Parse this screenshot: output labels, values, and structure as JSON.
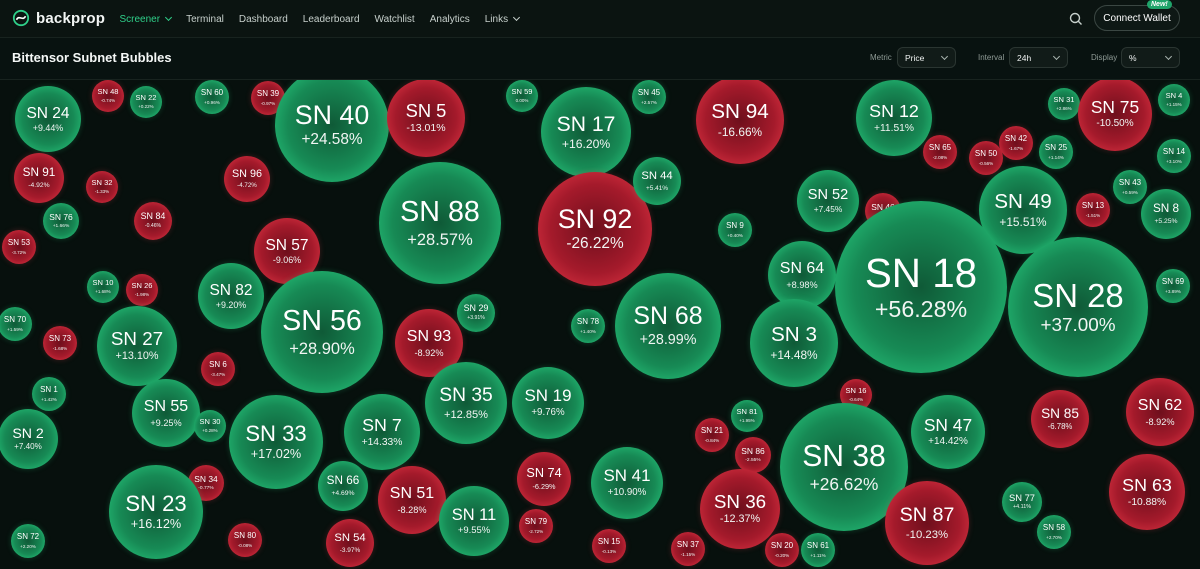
{
  "app": {
    "brand": "backprop"
  },
  "nav": [
    {
      "label": "Screener",
      "dropdown": true,
      "active": true
    },
    {
      "label": "Terminal"
    },
    {
      "label": "Dashboard"
    },
    {
      "label": "Leaderboard"
    },
    {
      "label": "Watchlist"
    },
    {
      "label": "Analytics"
    },
    {
      "label": "Links",
      "dropdown": true
    }
  ],
  "header": {
    "connect_label": "Connect Wallet",
    "new_badge": "New!"
  },
  "page": {
    "title": "Bittensor Subnet Bubbles"
  },
  "controls": {
    "metric": {
      "label": "Metric",
      "value": "Price"
    },
    "interval": {
      "label": "Interval",
      "value": "24h"
    },
    "display": {
      "label": "Display",
      "value": "%"
    }
  },
  "colors": {
    "gain": "#1f9e63",
    "loss": "#c22a38",
    "accent": "#2fd08a"
  },
  "bubbles": [
    {
      "name": "SN 24",
      "change": "+9.44%"
    },
    {
      "name": "SN 48",
      "change": "-0.74%"
    },
    {
      "name": "SN 22",
      "change": "+0.22%"
    },
    {
      "name": "SN 60",
      "change": "+0.96%"
    },
    {
      "name": "SN 39",
      "change": "-0.97%"
    },
    {
      "name": "SN 40",
      "change": "+24.58%"
    },
    {
      "name": "SN 5",
      "change": "-13.01%"
    },
    {
      "name": "SN 59",
      "change": "0.00%"
    },
    {
      "name": "SN 17",
      "change": "+16.20%"
    },
    {
      "name": "SN 45",
      "change": "+2.57%"
    },
    {
      "name": "SN 94",
      "change": "-16.66%"
    },
    {
      "name": "SN 12",
      "change": "+11.51%"
    },
    {
      "name": "SN 31",
      "change": "+2.86%"
    },
    {
      "name": "SN 75",
      "change": "-10.50%"
    },
    {
      "name": "SN 4",
      "change": "+1.15%"
    },
    {
      "name": "SN 91",
      "change": "-4.92%"
    },
    {
      "name": "SN 32",
      "change": "-1.33%"
    },
    {
      "name": "SN 96",
      "change": "-4.72%"
    },
    {
      "name": "SN 88",
      "change": "+28.57%"
    },
    {
      "name": "SN 92",
      "change": "-26.22%"
    },
    {
      "name": "SN 44",
      "change": "+5.41%"
    },
    {
      "name": "SN 65",
      "change": "-2.08%"
    },
    {
      "name": "SN 42",
      "change": "-1.67%"
    },
    {
      "name": "SN 50",
      "change": "-0.56%"
    },
    {
      "name": "SN 25",
      "change": "+1.14%"
    },
    {
      "name": "SN 14",
      "change": "+3.10%"
    },
    {
      "name": "SN 76",
      "change": "+1.66%"
    },
    {
      "name": "SN 84",
      "change": "-0.46%"
    },
    {
      "name": "SN 53",
      "change": "-3.72%"
    },
    {
      "name": "SN 57",
      "change": "-9.06%"
    },
    {
      "name": "SN 9",
      "change": "+0.40%"
    },
    {
      "name": "SN 52",
      "change": "+7.45%"
    },
    {
      "name": "SN 46",
      "change": "-1.51%"
    },
    {
      "name": "SN 49",
      "change": "+15.51%"
    },
    {
      "name": "SN 43",
      "change": "+0.59%"
    },
    {
      "name": "SN 13",
      "change": "-1.51%"
    },
    {
      "name": "SN 8",
      "change": "+5.25%"
    },
    {
      "name": "SN 10",
      "change": "+1.68%"
    },
    {
      "name": "SN 26",
      "change": "-1.98%"
    },
    {
      "name": "SN 82",
      "change": "+9.20%"
    },
    {
      "name": "SN 64",
      "change": "+8.98%"
    },
    {
      "name": "SN 18",
      "change": "+56.28%"
    },
    {
      "name": "SN 28",
      "change": "+37.00%"
    },
    {
      "name": "SN 69",
      "change": "+3.89%"
    },
    {
      "name": "SN 70",
      "change": "+1.59%"
    },
    {
      "name": "SN 73",
      "change": "-1.68%"
    },
    {
      "name": "SN 27",
      "change": "+13.10%"
    },
    {
      "name": "SN 56",
      "change": "+28.90%"
    },
    {
      "name": "SN 29",
      "change": "+3.91%"
    },
    {
      "name": "SN 93",
      "change": "-8.92%"
    },
    {
      "name": "SN 78",
      "change": "+1.40%"
    },
    {
      "name": "SN 68",
      "change": "+28.99%"
    },
    {
      "name": "SN 3",
      "change": "+14.48%"
    },
    {
      "name": "SN 6",
      "change": "-3.47%"
    },
    {
      "name": "SN 1",
      "change": "+1.42%"
    },
    {
      "name": "SN 55",
      "change": "+9.25%"
    },
    {
      "name": "SN 30",
      "change": "+0.28%"
    },
    {
      "name": "SN 33",
      "change": "+17.02%"
    },
    {
      "name": "SN 7",
      "change": "+14.33%"
    },
    {
      "name": "SN 35",
      "change": "+12.85%"
    },
    {
      "name": "SN 19",
      "change": "+9.76%"
    },
    {
      "name": "SN 16",
      "change": "-0.64%"
    },
    {
      "name": "SN 81",
      "change": "+1.95%"
    },
    {
      "name": "SN 47",
      "change": "+14.42%"
    },
    {
      "name": "SN 85",
      "change": "-6.78%"
    },
    {
      "name": "SN 62",
      "change": "-8.92%"
    },
    {
      "name": "SN 2",
      "change": "+7.40%"
    },
    {
      "name": "SN 21",
      "change": "-0.84%"
    },
    {
      "name": "SN 86",
      "change": "-2.55%"
    },
    {
      "name": "SN 38",
      "change": "+26.62%"
    },
    {
      "name": "SN 34",
      "change": "-0.77%"
    },
    {
      "name": "SN 66",
      "change": "+4.69%"
    },
    {
      "name": "SN 74",
      "change": "-6.29%"
    },
    {
      "name": "SN 41",
      "change": "+10.90%"
    },
    {
      "name": "SN 36",
      "change": "-12.37%"
    },
    {
      "name": "SN 23",
      "change": "+16.12%"
    },
    {
      "name": "SN 51",
      "change": "-8.28%"
    },
    {
      "name": "SN 11",
      "change": "+9.55%"
    },
    {
      "name": "SN 79",
      "change": "-2.72%"
    },
    {
      "name": "SN 87",
      "change": "-10.23%"
    },
    {
      "name": "SN 77",
      "change": "+4.11%"
    },
    {
      "name": "SN 63",
      "change": "-10.88%"
    },
    {
      "name": "SN 58",
      "change": "+2.70%"
    },
    {
      "name": "SN 72",
      "change": "+2.20%"
    },
    {
      "name": "SN 80",
      "change": "-0.08%"
    },
    {
      "name": "SN 54",
      "change": "-3.97%"
    },
    {
      "name": "SN 15",
      "change": "-0.13%"
    },
    {
      "name": "SN 37",
      "change": "-1.15%"
    },
    {
      "name": "SN 20",
      "change": "-0.20%"
    },
    {
      "name": "SN 61",
      "change": "+1.11%"
    }
  ]
}
